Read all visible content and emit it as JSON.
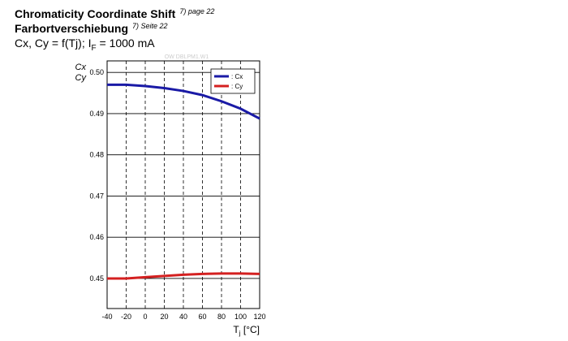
{
  "chart_data": {
    "type": "line",
    "title": "Chromaticity Coordinate Shift",
    "title_note": "7) page 22",
    "title_de": "Farbortverschiebung",
    "title_de_note": "7) Seite 22",
    "subtitle_parts": [
      "Cx, Cy = f(Tj); I",
      "F",
      " = 1000 mA"
    ],
    "watermark": "OW DBLPM1.W1",
    "y_label_lines": [
      "Cx",
      "Cy"
    ],
    "x_label_parts": [
      "T",
      "j",
      " [°C]"
    ],
    "x": [
      -40,
      -20,
      0,
      20,
      40,
      60,
      80,
      100,
      120
    ],
    "series": [
      {
        "name": ": Cx",
        "color": "#1a1aa6",
        "values": [
          0.497,
          0.497,
          0.4967,
          0.4962,
          0.4955,
          0.4945,
          0.493,
          0.4912,
          0.4888
        ]
      },
      {
        "name": ": Cy",
        "color": "#d42020",
        "values": [
          0.45,
          0.45,
          0.4503,
          0.4506,
          0.4509,
          0.4511,
          0.4512,
          0.4512,
          0.4511
        ]
      }
    ],
    "xlim": [
      -40,
      120
    ],
    "xticks": [
      -40,
      -20,
      0,
      20,
      40,
      60,
      80,
      100,
      120
    ],
    "ylim": [
      0.4427,
      0.5028
    ],
    "yticks": [
      0.45,
      0.46,
      0.47,
      0.48,
      0.49,
      {
        "value": 0.5,
        "label": "0.50"
      }
    ],
    "grid": true,
    "legend": "upper right"
  }
}
